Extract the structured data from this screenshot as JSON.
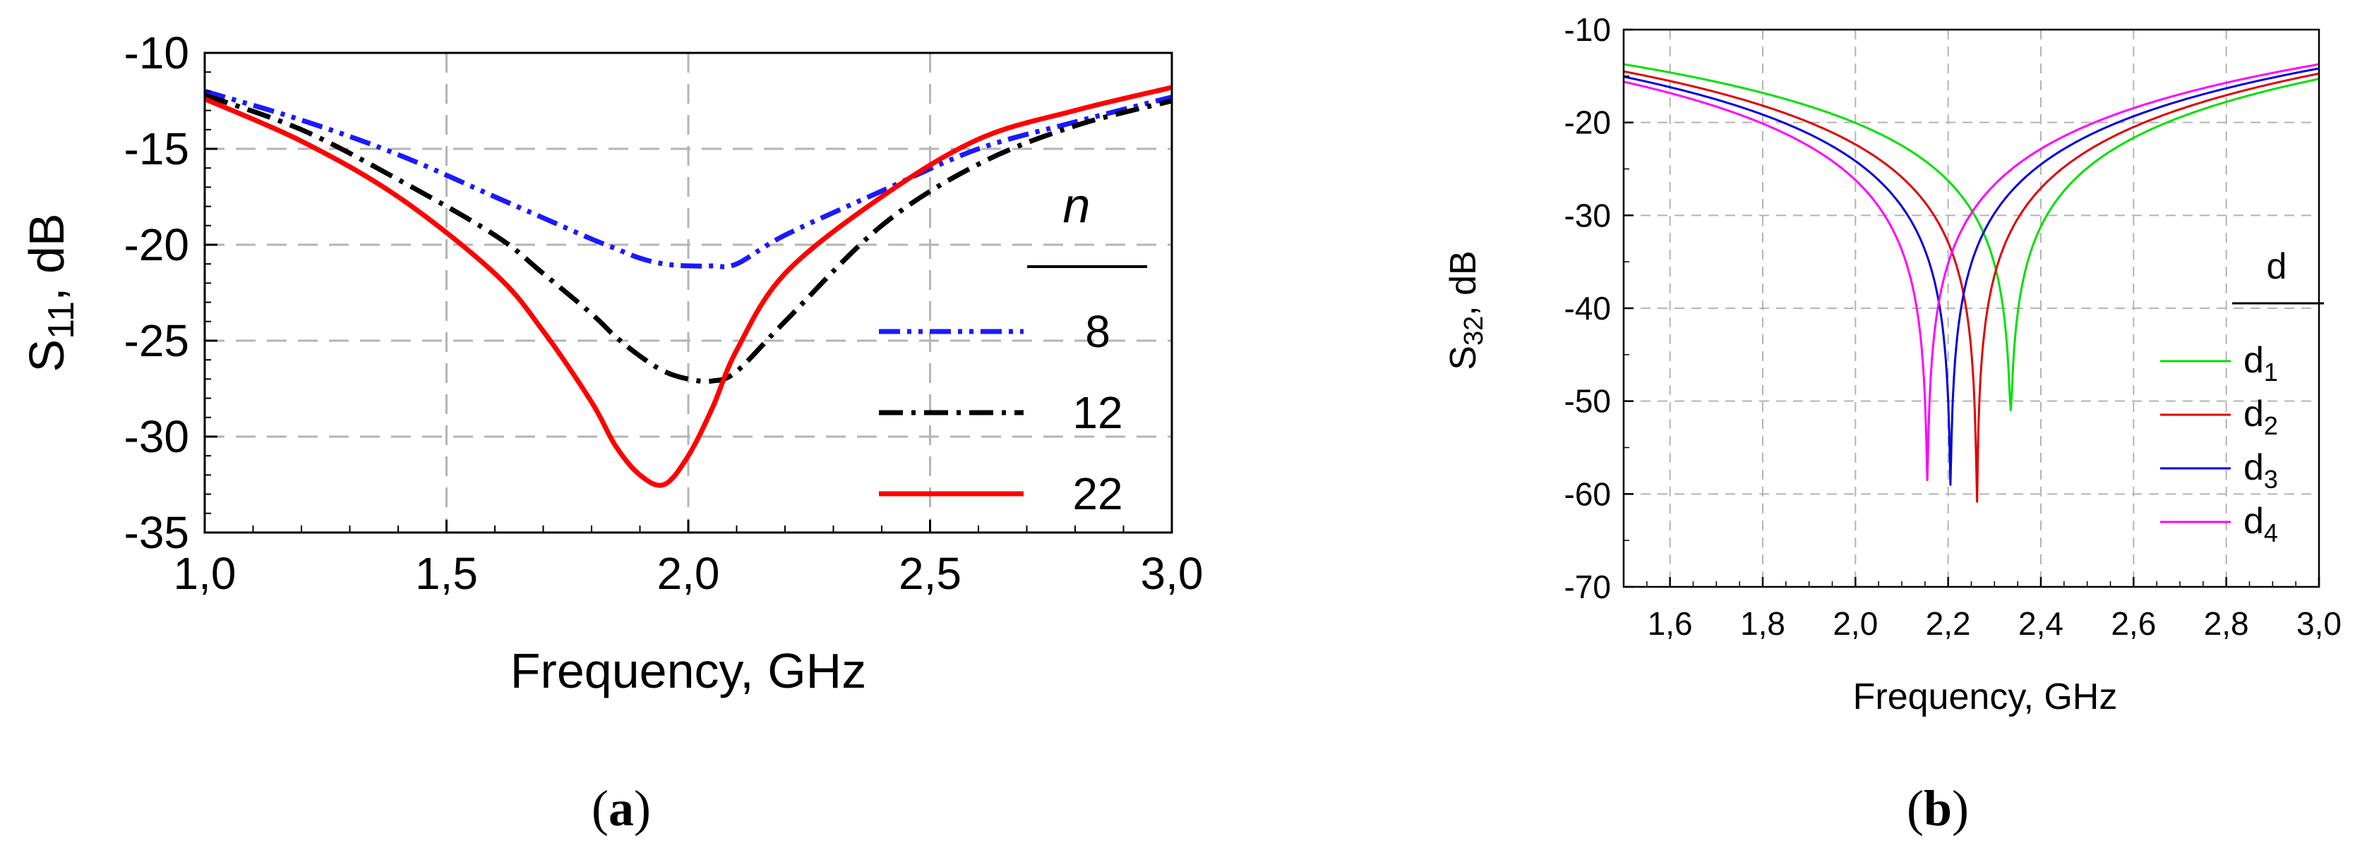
{
  "chart_data": [
    {
      "type": "line",
      "xlabel": "Frequency, GHz",
      "ylabel_main": "S",
      "ylabel_sub": "11",
      "ylabel_suffix": ", dB",
      "xlim": [
        1.0,
        3.0
      ],
      "ylim": [
        -35,
        -10
      ],
      "xticks": [
        "1,0",
        "1,5",
        "2,0",
        "2,5",
        "3,0"
      ],
      "yticks": [
        "-10",
        "-15",
        "-20",
        "-25",
        "-30",
        "-35"
      ],
      "grid": true,
      "legend_title": "n",
      "legend_position": "right",
      "x": [
        1.0,
        1.2,
        1.4,
        1.6,
        1.7,
        1.8,
        1.85,
        1.9,
        1.95,
        2.0,
        2.05,
        2.1,
        2.2,
        2.4,
        2.6,
        2.8,
        3.0
      ],
      "series": [
        {
          "name": "8",
          "color": "#1a1aff",
          "dash": "dashdotdot",
          "values": [
            -12.0,
            -13.5,
            -15.3,
            -17.5,
            -18.6,
            -19.7,
            -20.2,
            -20.7,
            -21.0,
            -21.1,
            -21.1,
            -21.0,
            -19.5,
            -17.2,
            -15.0,
            -13.6,
            -12.3
          ]
        },
        {
          "name": "12",
          "color": "#000000",
          "dash": "dashdot",
          "values": [
            -12.2,
            -14.0,
            -16.6,
            -19.5,
            -21.5,
            -23.6,
            -24.8,
            -25.8,
            -26.6,
            -27.0,
            -27.1,
            -26.6,
            -24.0,
            -19.0,
            -15.8,
            -13.8,
            -12.5
          ]
        },
        {
          "name": "22",
          "color": "#ff0000",
          "dash": "solid",
          "values": [
            -12.4,
            -14.6,
            -17.5,
            -21.5,
            -24.5,
            -28.2,
            -30.5,
            -32.0,
            -32.5,
            -31.0,
            -28.5,
            -25.5,
            -21.5,
            -17.5,
            -14.5,
            -13.0,
            -11.8
          ]
        }
      ]
    },
    {
      "type": "line",
      "xlabel": "Frequency, GHz",
      "ylabel_main": "S",
      "ylabel_sub": "32",
      "ylabel_suffix": ", dB",
      "xlim": [
        1.5,
        3.0
      ],
      "ylim": [
        -70,
        -10
      ],
      "xticks": [
        "1,6",
        "1,8",
        "2,0",
        "2,2",
        "2,4",
        "2,6",
        "2,8",
        "3,0"
      ],
      "yticks": [
        "-10",
        "-20",
        "-30",
        "-40",
        "-50",
        "-60",
        "-70"
      ],
      "grid": true,
      "legend_title": "d",
      "legend_position": "right",
      "series": [
        {
          "name": "d",
          "sub": "1",
          "color": "#00e000",
          "f0": 2.335,
          "min": -51,
          "k": 16
        },
        {
          "name": "d",
          "sub": "2",
          "color": "#e00000",
          "f0": 2.262,
          "min": -61.5,
          "k": 17
        },
        {
          "name": "d",
          "sub": "3",
          "color": "#0000e0",
          "f0": 2.205,
          "min": -59,
          "k": 17
        },
        {
          "name": "d",
          "sub": "4",
          "color": "#ff00ff",
          "f0": 2.155,
          "min": -58.5,
          "k": 17
        }
      ]
    }
  ],
  "captions": [
    "a",
    "b"
  ]
}
